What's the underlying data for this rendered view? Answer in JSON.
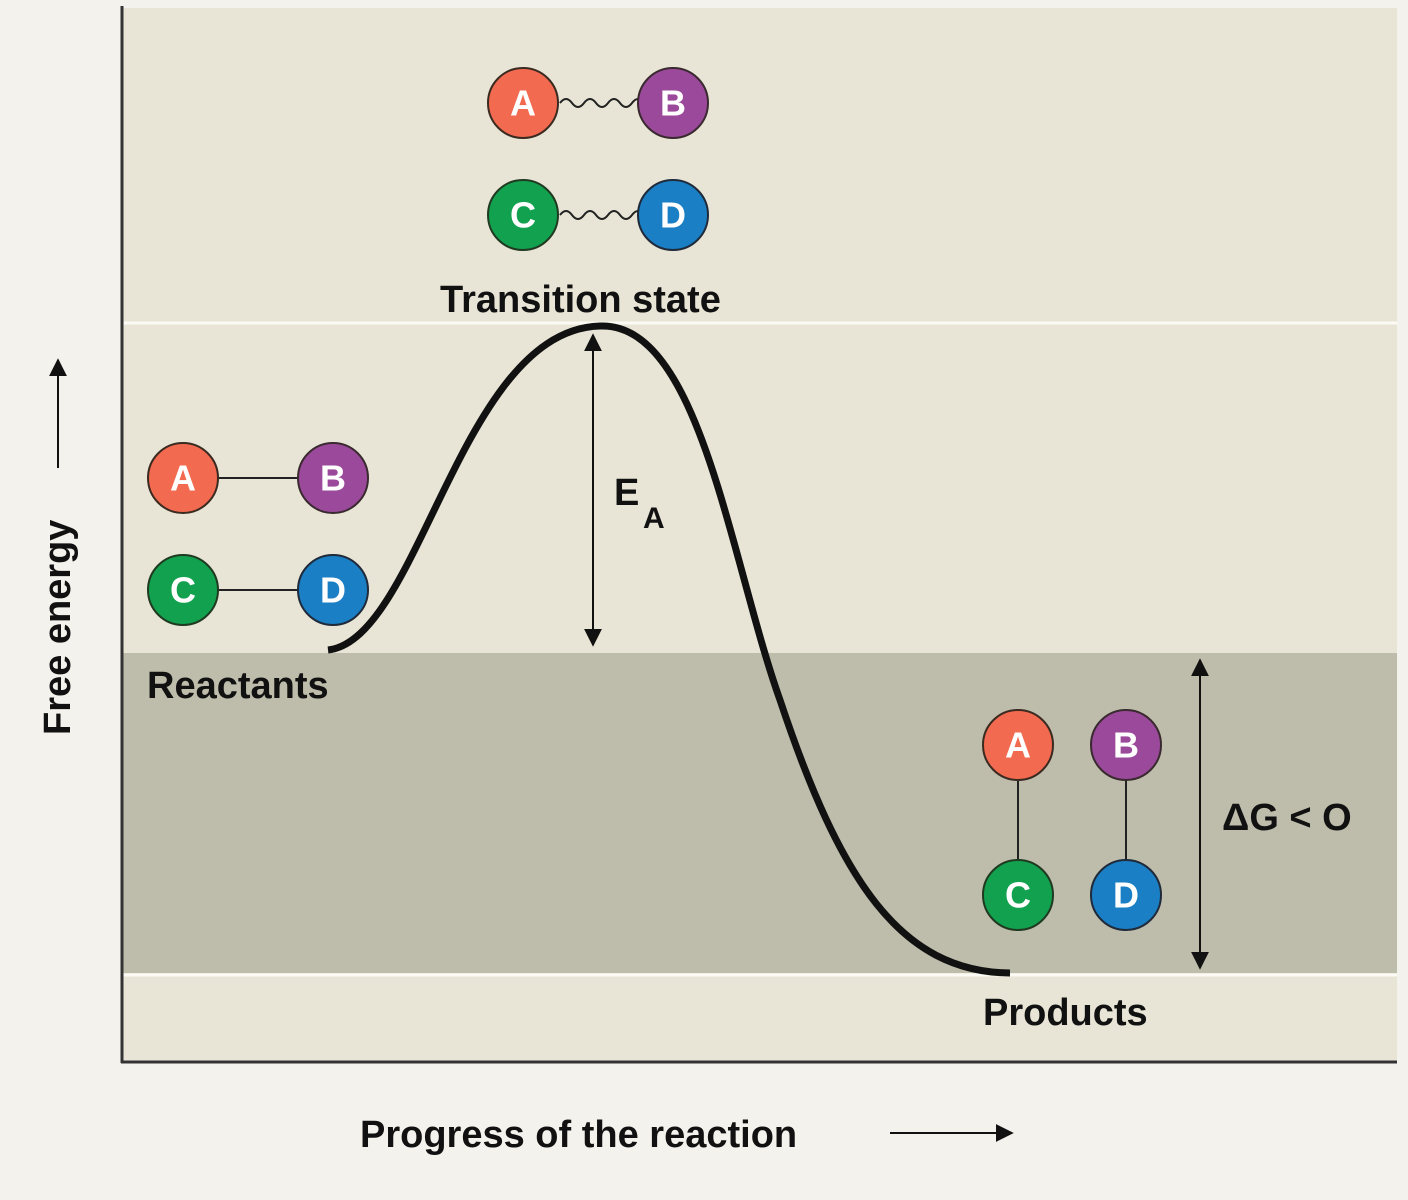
{
  "axes": {
    "y_label": "Free energy",
    "x_label": "Progress of the reaction"
  },
  "states": {
    "transition": "Transition state",
    "reactants": "Reactants",
    "products": "Products"
  },
  "annotations": {
    "activation_energy": "E",
    "activation_energy_sub": "A",
    "delta_g": "ΔG < O",
    "delta_g_prefix": "Δ",
    "delta_g_var": "G",
    "delta_g_rest": " < O"
  },
  "atoms": {
    "a": "A",
    "b": "B",
    "c": "C",
    "d": "D"
  },
  "colors": {
    "background": "#e8e5d6",
    "energy_band": "#bebcab",
    "atom_a": "#f26a4f",
    "atom_b": "#9b4a9b",
    "atom_c": "#12a14f",
    "atom_d": "#1a7fc4",
    "curve": "#111111"
  }
}
